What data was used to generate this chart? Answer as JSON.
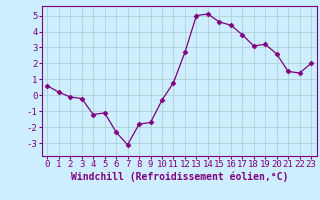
{
  "x": [
    0,
    1,
    2,
    3,
    4,
    5,
    6,
    7,
    8,
    9,
    10,
    11,
    12,
    13,
    14,
    15,
    16,
    17,
    18,
    19,
    20,
    21,
    22,
    23
  ],
  "y": [
    0.6,
    0.2,
    -0.1,
    -0.2,
    -1.2,
    -1.1,
    -2.3,
    -3.1,
    -1.8,
    -1.7,
    -0.3,
    0.8,
    2.7,
    5.0,
    5.1,
    4.6,
    4.4,
    3.8,
    3.1,
    3.2,
    2.6,
    1.5,
    1.4,
    2.0
  ],
  "line_color": "#800080",
  "marker": "D",
  "marker_size": 2.5,
  "bg_color": "#cceeff",
  "grid_color": "#aacccc",
  "xlabel": "Windchill (Refroidissement éolien,°C)",
  "xlabel_fontsize": 7,
  "tick_fontsize": 6.5,
  "ylim": [
    -3.8,
    5.6
  ],
  "xlim": [
    -0.5,
    23.5
  ],
  "yticks": [
    -3,
    -2,
    -1,
    0,
    1,
    2,
    3,
    4,
    5
  ],
  "xticks": [
    0,
    1,
    2,
    3,
    4,
    5,
    6,
    7,
    8,
    9,
    10,
    11,
    12,
    13,
    14,
    15,
    16,
    17,
    18,
    19,
    20,
    21,
    22,
    23
  ],
  "spine_color": "#800080",
  "label_color": "#800080"
}
